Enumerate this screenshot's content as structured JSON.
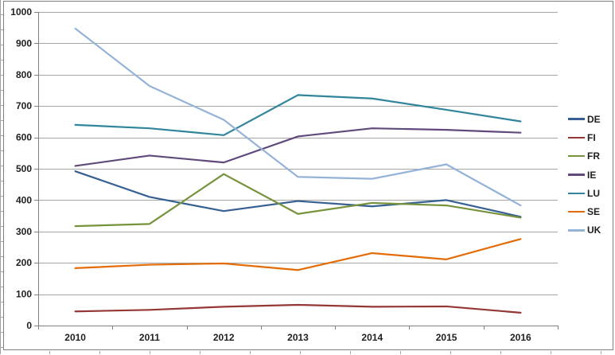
{
  "chart_data": {
    "type": "line",
    "title": "",
    "xlabel": "",
    "ylabel": "",
    "x_categories": [
      "2010",
      "2011",
      "2012",
      "2013",
      "2014",
      "2015",
      "2016"
    ],
    "y_tick_labels": [
      "0",
      "100",
      "200",
      "300",
      "400",
      "500",
      "600",
      "700",
      "800",
      "900",
      "1000"
    ],
    "ylim": [
      0,
      1000
    ],
    "grid": true,
    "legend_position": "right",
    "series": [
      {
        "name": "DE",
        "color": "#366092",
        "values": [
          492,
          410,
          365,
          397,
          380,
          400,
          347
        ]
      },
      {
        "name": "FI",
        "color": "#953735",
        "values": [
          45,
          50,
          60,
          66,
          60,
          61,
          41
        ]
      },
      {
        "name": "FR",
        "color": "#76933C",
        "values": [
          317,
          324,
          483,
          356,
          391,
          383,
          344
        ]
      },
      {
        "name": "IE",
        "color": "#604A7B",
        "values": [
          509,
          542,
          520,
          603,
          629,
          624,
          615
        ]
      },
      {
        "name": "LU",
        "color": "#31859B",
        "values": [
          640,
          629,
          607,
          735,
          724,
          688,
          651
        ]
      },
      {
        "name": "SE",
        "color": "#E36C09",
        "values": [
          183,
          194,
          198,
          177,
          231,
          211,
          276
        ]
      },
      {
        "name": "UK",
        "color": "#95B3D7",
        "values": [
          947,
          764,
          656,
          474,
          468,
          514,
          383
        ]
      }
    ]
  },
  "colors": {
    "gridline": "#a6a6a6",
    "axis": "#808080",
    "frame_border": "#7f7f7f",
    "label": "#1f1f1f",
    "background": "#ffffff"
  }
}
